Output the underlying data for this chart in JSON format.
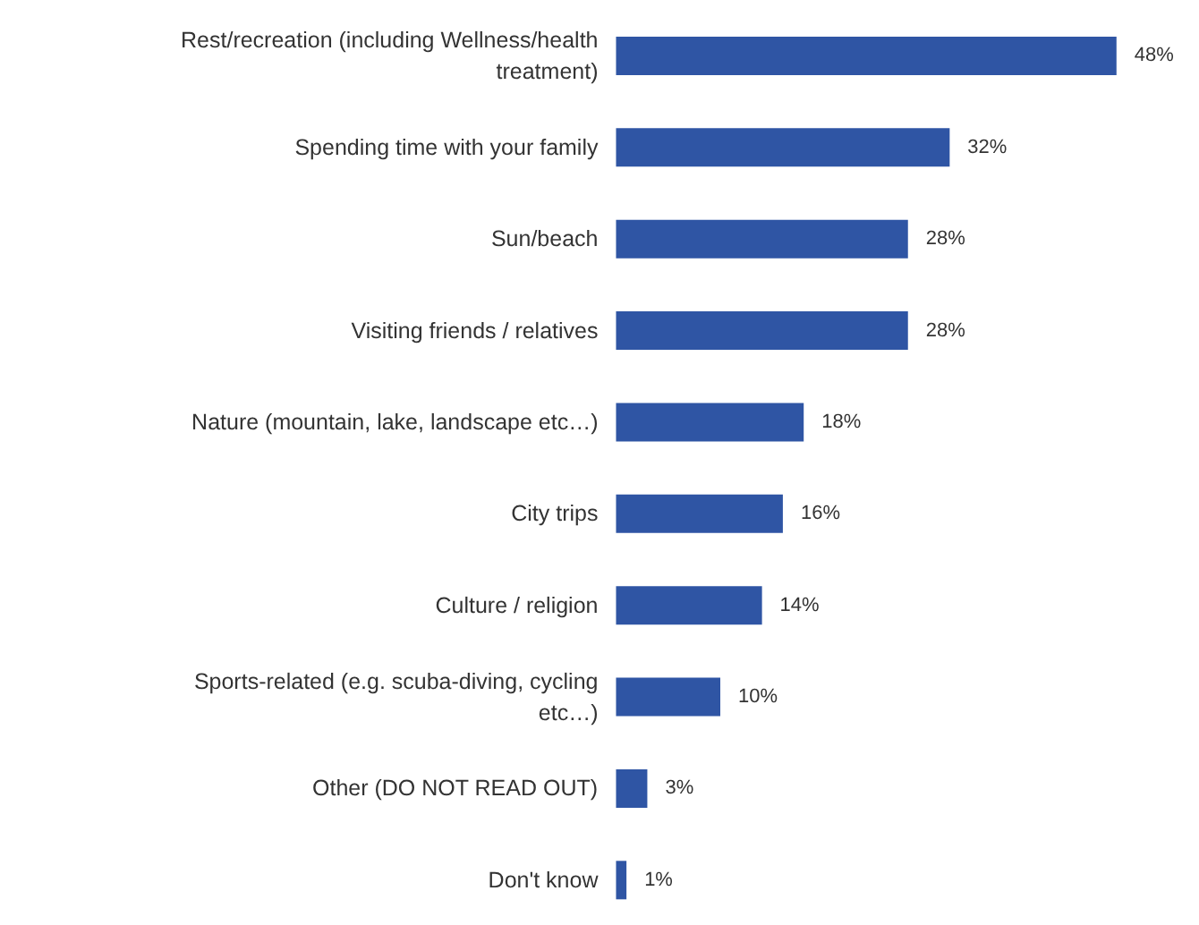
{
  "chart_data": {
    "type": "bar",
    "orientation": "horizontal",
    "categories": [
      "Rest/recreation (including Wellness/health treatment)",
      "Spending time with your family",
      "Sun/beach",
      "Visiting friends / relatives",
      "Nature (mountain, lake, landscape etc…)",
      "City trips",
      "Culture / religion",
      "Sports-related (e.g. scuba-diving, cycling etc…)",
      "Other (DO NOT READ OUT)",
      "Don't know"
    ],
    "values": [
      48,
      32,
      28,
      28,
      18,
      16,
      14,
      10,
      3,
      1
    ],
    "value_labels": [
      "48%",
      "32%",
      "28%",
      "28%",
      "18%",
      "16%",
      "14%",
      "10%",
      "3%",
      "1%"
    ],
    "color": "#2f55a4"
  }
}
